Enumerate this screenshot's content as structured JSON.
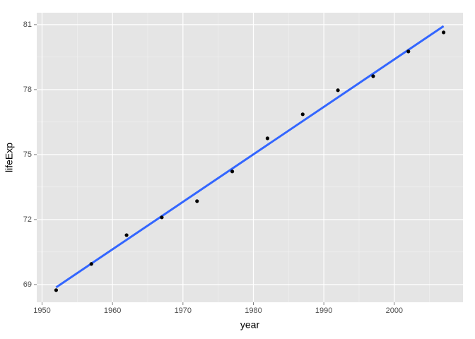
{
  "chart_data": {
    "type": "scatter",
    "x_label": "year",
    "y_label": "lifeExp",
    "x": [
      1952,
      1957,
      1962,
      1967,
      1972,
      1977,
      1982,
      1987,
      1992,
      1997,
      2002,
      2007
    ],
    "values": [
      68.74,
      69.95,
      71.28,
      72.1,
      72.85,
      74.22,
      75.75,
      76.86,
      77.97,
      78.62,
      79.76,
      80.64
    ],
    "color": "#000000",
    "fit": {
      "color": "#3366ff",
      "x": [
        1952,
        2007
      ],
      "values": [
        68.87,
        80.93
      ]
    },
    "xlim": [
      1949.25,
      2009.75
    ],
    "xticks": [
      1950,
      1960,
      1970,
      1980,
      1990,
      2000
    ],
    "ylim": [
      68.18,
      81.55
    ],
    "yticks": [
      69,
      72,
      75,
      78,
      81
    ],
    "grid": true
  }
}
